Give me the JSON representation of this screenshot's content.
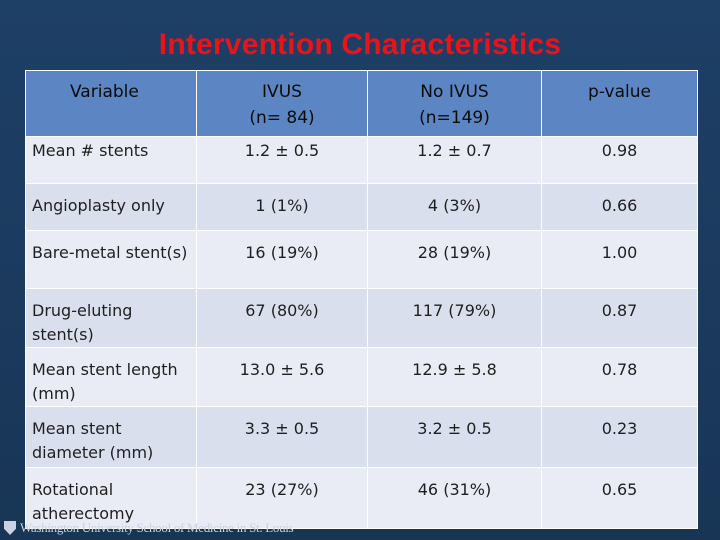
{
  "slide": {
    "title": "Intervention Characteristics",
    "footer_logo_text": "Washington University School of Medicine in St. Louis"
  },
  "table": {
    "headers": [
      {
        "line1": "Variable",
        "line2": ""
      },
      {
        "line1": "IVUS",
        "line2": "(n= 84)"
      },
      {
        "line1": "No IVUS",
        "line2": "(n=149)"
      },
      {
        "line1": "p-value",
        "line2": ""
      }
    ],
    "rows": [
      {
        "variable": "Mean # stents",
        "ivus": "1.2 ± 0.5",
        "no_ivus": "1.2 ± 0.7",
        "p_value": "0.98"
      },
      {
        "variable": "Angioplasty only",
        "ivus": "1 (1%)",
        "no_ivus": "4 (3%)",
        "p_value": "0.66"
      },
      {
        "variable": "Bare-metal stent(s)",
        "ivus": "16 (19%)",
        "no_ivus": "28 (19%)",
        "p_value": "1.00"
      },
      {
        "variable": "Drug-eluting stent(s)",
        "ivus": "67 (80%)",
        "no_ivus": "117 (79%)",
        "p_value": "0.87"
      },
      {
        "variable": "Mean stent length (mm)",
        "ivus": "13.0 ± 5.6",
        "no_ivus": "12.9 ± 5.8",
        "p_value": "0.78"
      },
      {
        "variable": "Mean stent diameter (mm)",
        "ivus": "3.3 ± 0.5",
        "no_ivus": "3.2 ± 0.5",
        "p_value": "0.23"
      },
      {
        "variable": "Rotational atherectomy",
        "ivus": "23 (27%)",
        "no_ivus": "46 (31%)",
        "p_value": "0.65"
      }
    ]
  },
  "colors": {
    "background": "#1b3a5e",
    "title": "#e8141c",
    "header_fill": "#5b86c3",
    "row_light": "#e9ecf4",
    "row_dark": "#d9dfec"
  }
}
